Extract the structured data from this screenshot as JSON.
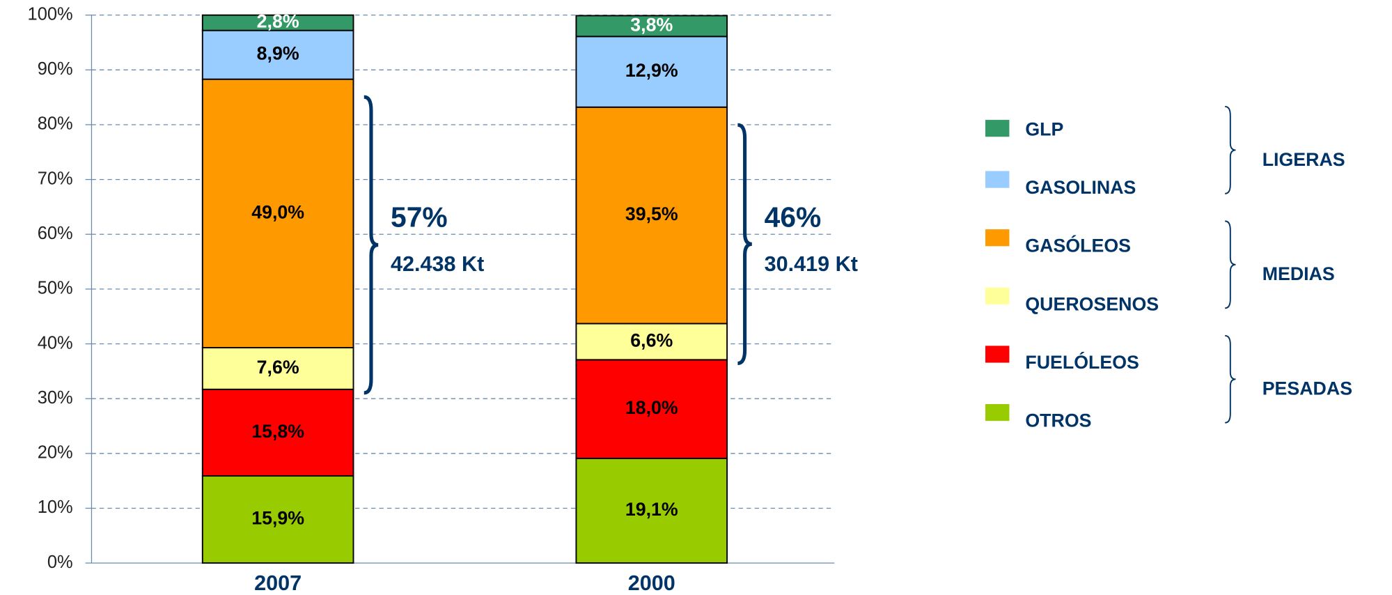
{
  "chart_data": {
    "type": "stacked_bar",
    "categories": [
      "2007",
      "2000"
    ],
    "series": [
      {
        "name": "OTROS",
        "color": "#99cc00",
        "label_color": "#000000",
        "values": [
          15.9,
          19.1
        ],
        "value_labels": [
          "15,9%",
          "19,1%"
        ]
      },
      {
        "name": "FUELÓLEOS",
        "color": "#ff0000",
        "label_color": "#000000",
        "values": [
          15.8,
          18.0
        ],
        "value_labels": [
          "15,8%",
          "18,0%"
        ]
      },
      {
        "name": "QUEROSENOS",
        "color": "#ffff99",
        "label_color": "#000000",
        "values": [
          7.6,
          6.6
        ],
        "value_labels": [
          "7,6%",
          "6,6%"
        ]
      },
      {
        "name": "GASÓLEOS",
        "color": "#ff9900",
        "label_color": "#000000",
        "values": [
          49.0,
          39.5
        ],
        "value_labels": [
          "49,0%",
          "39,5%"
        ]
      },
      {
        "name": "GASOLINAS",
        "color": "#99ccff",
        "label_color": "#000000",
        "values": [
          8.9,
          12.9
        ],
        "value_labels": [
          "8,9%",
          "12,9%"
        ]
      },
      {
        "name": "GLP",
        "color": "#339966",
        "label_color": "#ffffff",
        "values": [
          2.8,
          3.8
        ],
        "value_labels": [
          "2,8%",
          "3,8%"
        ]
      }
    ],
    "ylim": [
      0,
      100
    ],
    "yticks": [
      {
        "value": 0,
        "label": "0%"
      },
      {
        "value": 10,
        "label": "10%"
      },
      {
        "value": 20,
        "label": "20%"
      },
      {
        "value": 30,
        "label": "30%"
      },
      {
        "value": 40,
        "label": "40%"
      },
      {
        "value": 50,
        "label": "50%"
      },
      {
        "value": 60,
        "label": "60%"
      },
      {
        "value": 70,
        "label": "70%"
      },
      {
        "value": 80,
        "label": "80%"
      },
      {
        "value": 90,
        "label": "90%"
      },
      {
        "value": 100,
        "label": "100%"
      }
    ],
    "grid": true,
    "annotations": [
      {
        "text": "57%",
        "subtext": "42.438 Kt"
      },
      {
        "text": "46%",
        "subtext": "30.419 Kt"
      }
    ],
    "legend_groups": [
      "PESADAS",
      "MEDIAS",
      "LIGERAS"
    ]
  }
}
